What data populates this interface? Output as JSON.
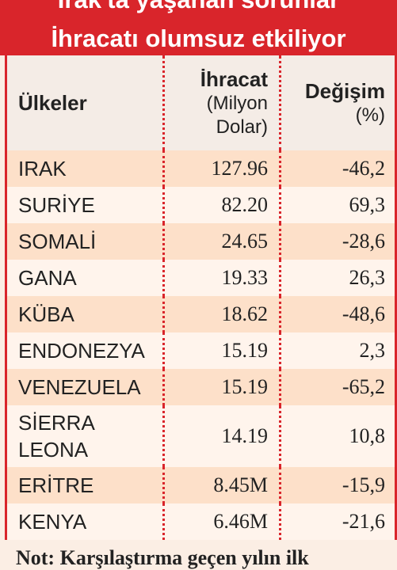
{
  "header": {
    "title_line1": "Irak'ta yaşanan sorunlar",
    "title_line2": "İhracatı olumsuz etkiliyor"
  },
  "table": {
    "columns": [
      {
        "title": "Ülkeler"
      },
      {
        "title": "İhracat",
        "subtitle": "(Milyon Dolar)"
      },
      {
        "title": "Değişim",
        "subtitle": "(%)"
      }
    ],
    "rows": [
      [
        "IRAK",
        "127.96",
        "-46,2"
      ],
      [
        "SURİYE",
        "82.20",
        "69,3"
      ],
      [
        "SOMALİ",
        "24.65",
        "-28,6"
      ],
      [
        "GANA",
        "19.33",
        "26,3"
      ],
      [
        "KÜBA",
        "18.62",
        "-48,6"
      ],
      [
        "ENDONEZYA",
        "15.19",
        "2,3"
      ],
      [
        "VENEZUELA",
        "15.19",
        "-65,2"
      ],
      [
        "SİERRA LEONA",
        "14.19",
        "10,8"
      ],
      [
        "ERİTRE",
        "8.45M",
        "-15,9"
      ],
      [
        "KENYA",
        "6.46M",
        "-21,6"
      ]
    ]
  },
  "note": "Not: Karşılaştırma geçen yılın ilk"
}
